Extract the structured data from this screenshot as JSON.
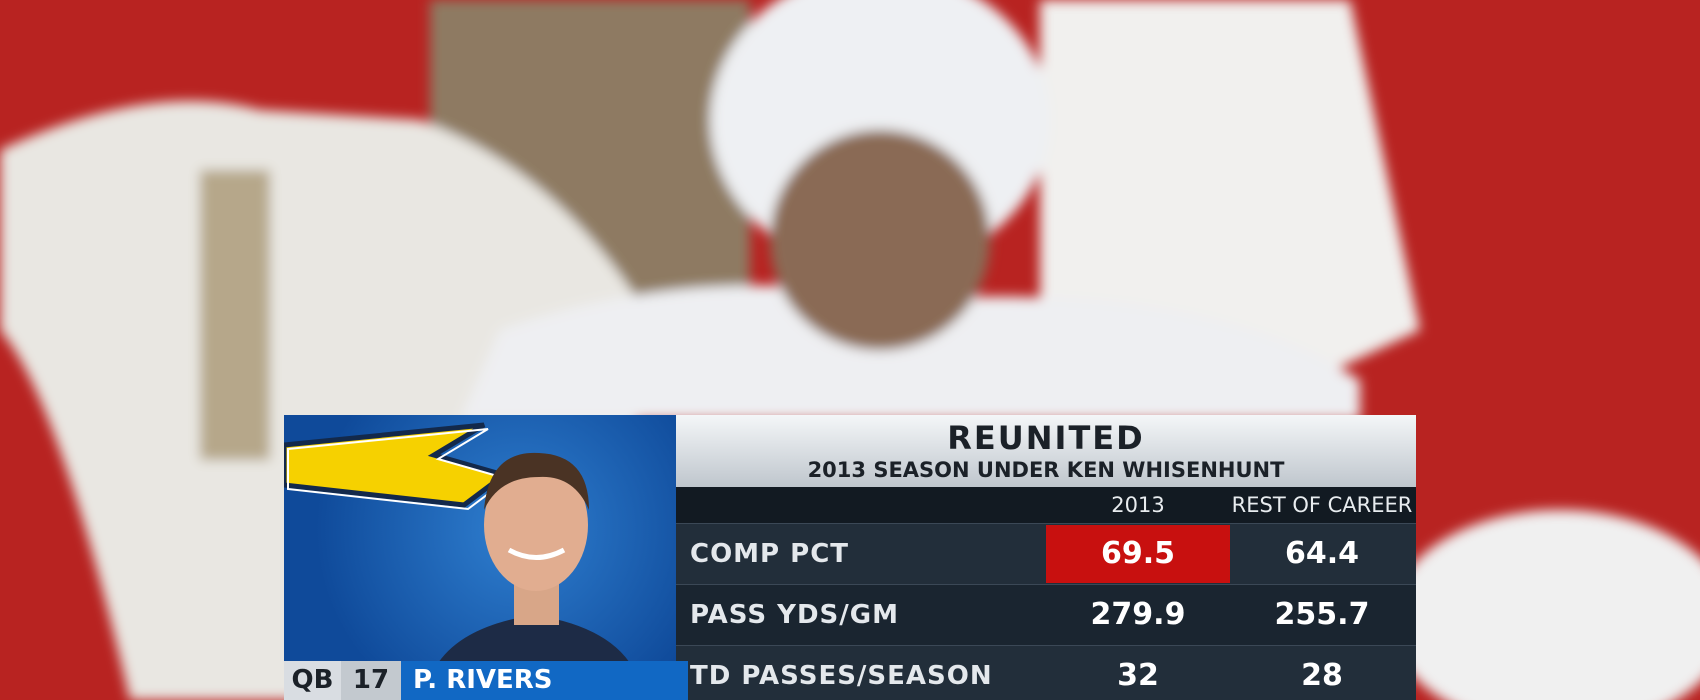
{
  "graphic": {
    "title": "REUNITED",
    "subtitle": "2013 SEASON UNDER KEN WHISENHUNT",
    "columns": [
      "2013",
      "REST OF CAREER"
    ],
    "rows": [
      {
        "label": "COMP PCT",
        "values": [
          "69.5",
          "64.4"
        ]
      },
      {
        "label": "PASS YDS/GM",
        "values": [
          "279.9",
          "255.7"
        ]
      },
      {
        "label": "TD PASSES/SEASON",
        "values": [
          "32",
          "28"
        ]
      }
    ],
    "player": {
      "position": "QB",
      "number": "17",
      "name": "P. RIVERS"
    }
  }
}
